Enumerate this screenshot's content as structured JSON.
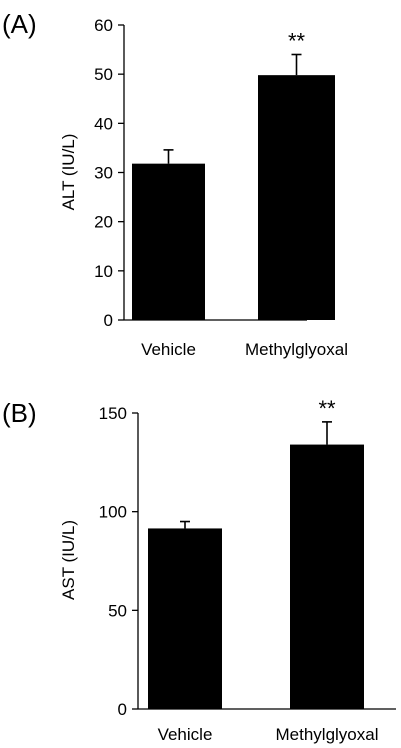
{
  "chart_data": [
    {
      "panel_label": "(A)",
      "type": "bar",
      "ylabel": "ALT (IU/L)",
      "categories": [
        "Vehicle",
        "Methylglyoxal"
      ],
      "values": [
        31.8,
        49.8
      ],
      "error": [
        2.8,
        4.2
      ],
      "significance": [
        "",
        "**"
      ],
      "ylim": [
        0,
        60
      ],
      "yticks": [
        0,
        10,
        20,
        30,
        40,
        50,
        60
      ],
      "bar_color": "#000000"
    },
    {
      "panel_label": "(B)",
      "type": "bar",
      "ylabel": "AST (IU/L)",
      "categories": [
        "Vehicle",
        "Methylglyoxal"
      ],
      "values": [
        91.5,
        134
      ],
      "error": [
        3.5,
        11.5
      ],
      "significance": [
        "",
        "**"
      ],
      "ylim": [
        0,
        150
      ],
      "yticks": [
        0,
        50,
        100,
        150
      ],
      "bar_color": "#000000"
    }
  ]
}
